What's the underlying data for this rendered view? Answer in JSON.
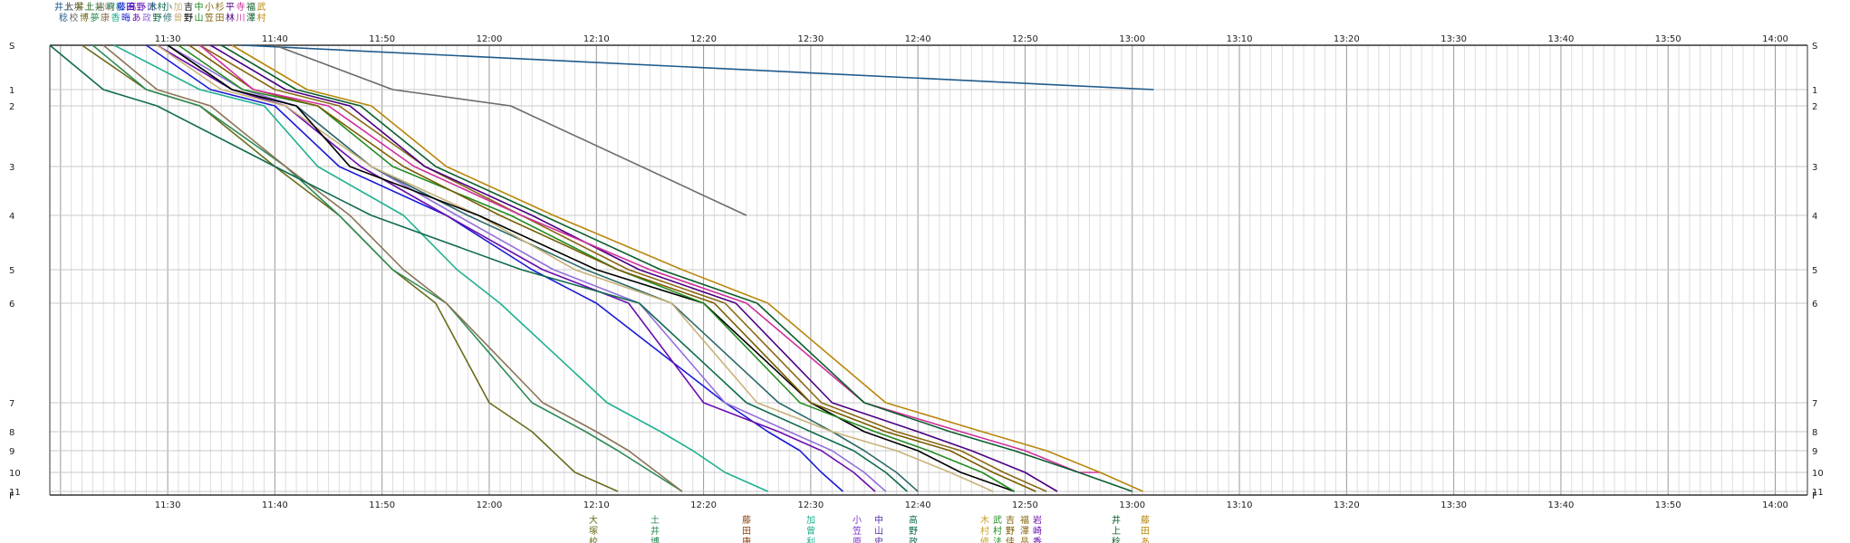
{
  "chart_data": {
    "type": "line",
    "title": "",
    "xlabel": "",
    "ylabel": "",
    "x_ticks": [
      "11:30",
      "11:40",
      "11:50",
      "12:00",
      "12:10",
      "12:20",
      "12:30",
      "12:40",
      "12:50",
      "13:00",
      "13:10",
      "13:20",
      "13:30",
      "13:40",
      "13:50",
      "14:00"
    ],
    "x_range": [
      "11:19",
      "14:03"
    ],
    "y_ticks": [
      "S",
      "1",
      "2",
      "3",
      "4",
      "5",
      "6",
      "7",
      "8",
      "9",
      "10",
      "11",
      "F"
    ],
    "grid": true,
    "legend": "top-left",
    "legend_names": [
      [
        "井上",
        "稔"
      ],
      [
        "大塚",
        "校"
      ],
      [
        "井上",
        "博"
      ],
      [
        "土井",
        "夢"
      ],
      [
        "岩崎",
        "康"
      ],
      [
        "村松",
        "香"
      ],
      [
        "藤田",
        "晦"
      ],
      [
        "高野",
        "あ"
      ],
      [
        "多田",
        "政"
      ],
      [
        "木村",
        "野"
      ],
      [
        "小",
        "修"
      ],
      [
        "加",
        "曾"
      ],
      [
        "吉",
        "野"
      ],
      [
        "中",
        "山"
      ],
      [
        "小",
        "笠"
      ],
      [
        "杉",
        "田"
      ],
      [
        "平",
        "林"
      ],
      [
        "寺",
        "川"
      ],
      [
        "福",
        "澤"
      ],
      [
        "武",
        "村"
      ]
    ],
    "finish_labels": [
      {
        "name": [
          "大",
          "塚",
          "校"
        ],
        "color": "#6b6b1c"
      },
      {
        "name": [
          "土",
          "井",
          "博"
        ],
        "color": "#2e8b57"
      },
      {
        "name": [
          "藤",
          "田",
          "康"
        ],
        "color": "#8b4513"
      },
      {
        "name": [
          "加",
          "曾",
          "利"
        ],
        "color": "#20b090"
      },
      {
        "name": [
          "小",
          "笠",
          "原"
        ],
        "color": "#7b2fc9"
      },
      {
        "name": [
          "中",
          "山",
          "史"
        ],
        "color": "#5a2ea6"
      },
      {
        "name": [
          "高",
          "野",
          "政"
        ],
        "color": "#0f6b4f"
      },
      {
        "name": [
          "木",
          "村",
          "修"
        ],
        "color": "#c9a227"
      },
      {
        "name": [
          "武",
          "村",
          "法"
        ],
        "color": "#228b22"
      },
      {
        "name": [
          "吉",
          "野",
          "佳"
        ],
        "color": "#7a5c00"
      },
      {
        "name": [
          "福",
          "澤",
          "晶"
        ],
        "color": "#8b6914"
      },
      {
        "name": [
          "岩",
          "崎",
          "香"
        ],
        "color": "#6a0dad"
      },
      {
        "name": [
          "井",
          "上",
          "稔"
        ],
        "color": "#0b5e2d"
      },
      {
        "name": [
          "藤",
          "田",
          "あ"
        ],
        "color": "#b8860b"
      }
    ],
    "series": [
      {
        "color": "#1e5a8c",
        "points": [
          [
            "11:37",
            0
          ],
          [
            "13:02",
            1
          ]
        ]
      },
      {
        "color": "#6b6b6b",
        "points": [
          [
            "11:40",
            0
          ],
          [
            "11:51",
            1
          ],
          [
            "12:02",
            2
          ],
          [
            "12:24",
            4
          ]
        ]
      },
      {
        "color": "#6b6b1c",
        "points": [
          [
            "11:22",
            0
          ],
          [
            "11:28",
            1
          ],
          [
            "11:33",
            2
          ],
          [
            "11:40",
            3
          ],
          [
            "11:46",
            4
          ],
          [
            "11:51",
            5
          ],
          [
            "11:55",
            6
          ],
          [
            "12:00",
            7
          ],
          [
            "12:04",
            8
          ],
          [
            "12:08",
            10
          ],
          [
            "12:12",
            11
          ]
        ]
      },
      {
        "color": "#2e8b57",
        "points": [
          [
            "11:23",
            0
          ],
          [
            "11:28",
            1
          ],
          [
            "11:33",
            2
          ],
          [
            "11:41",
            3
          ],
          [
            "11:46",
            4
          ],
          [
            "11:51",
            5
          ],
          [
            "11:56",
            6
          ],
          [
            "12:04",
            7
          ],
          [
            "12:09",
            8
          ],
          [
            "12:12",
            9
          ],
          [
            "12:18",
            11
          ]
        ]
      },
      {
        "color": "#8b7355",
        "points": [
          [
            "11:24",
            0
          ],
          [
            "11:29",
            1
          ],
          [
            "11:34",
            2
          ],
          [
            "11:41",
            3
          ],
          [
            "11:47",
            4
          ],
          [
            "11:52",
            5
          ],
          [
            "11:56",
            6
          ],
          [
            "12:05",
            7
          ],
          [
            "12:10",
            8
          ],
          [
            "12:13",
            9
          ],
          [
            "12:18",
            11
          ]
        ]
      },
      {
        "color": "#20b090",
        "points": [
          [
            "11:25",
            0
          ],
          [
            "11:33",
            1
          ],
          [
            "11:39",
            2
          ],
          [
            "11:44",
            3
          ],
          [
            "11:52",
            4
          ],
          [
            "11:57",
            5
          ],
          [
            "12:01",
            6
          ],
          [
            "12:11",
            7
          ],
          [
            "12:16",
            8
          ],
          [
            "12:19",
            9
          ],
          [
            "12:22",
            10
          ],
          [
            "12:26",
            11
          ]
        ]
      },
      {
        "color": "#1a1ad6",
        "points": [
          [
            "11:28",
            0
          ],
          [
            "11:34",
            1
          ],
          [
            "11:40",
            2
          ],
          [
            "11:46",
            3
          ],
          [
            "11:56",
            4
          ],
          [
            "12:04",
            5
          ],
          [
            "12:10",
            6
          ],
          [
            "12:22",
            7
          ],
          [
            "12:26",
            8
          ],
          [
            "12:29",
            9
          ],
          [
            "12:31",
            10
          ],
          [
            "12:33",
            11
          ]
        ]
      },
      {
        "color": "#6a0dad",
        "points": [
          [
            "11:29",
            0
          ],
          [
            "11:36",
            1
          ],
          [
            "11:41",
            2
          ],
          [
            "11:48",
            3
          ],
          [
            "11:56",
            4
          ],
          [
            "12:05",
            5
          ],
          [
            "12:13",
            6
          ],
          [
            "12:20",
            7
          ],
          [
            "12:27",
            8
          ],
          [
            "12:31",
            9
          ],
          [
            "12:34",
            10
          ],
          [
            "12:36",
            11
          ]
        ]
      },
      {
        "color": "#9370db",
        "points": [
          [
            "11:30",
            0
          ],
          [
            "11:37",
            1
          ],
          [
            "11:42",
            2
          ],
          [
            "11:49",
            3
          ],
          [
            "11:57",
            4
          ],
          [
            "12:06",
            5
          ],
          [
            "12:14",
            6
          ],
          [
            "12:22",
            7
          ],
          [
            "12:28",
            8
          ],
          [
            "12:32",
            9
          ],
          [
            "12:35",
            10
          ],
          [
            "12:37",
            11
          ]
        ]
      },
      {
        "color": "#0f6b4f",
        "points": [
          [
            "11:19",
            0
          ],
          [
            "11:24",
            1
          ],
          [
            "11:29",
            2
          ],
          [
            "11:40",
            3
          ],
          [
            "11:49",
            4
          ],
          [
            "12:03",
            5
          ],
          [
            "12:14",
            6
          ],
          [
            "12:24",
            7
          ],
          [
            "12:30",
            8
          ],
          [
            "12:34",
            9
          ],
          [
            "12:37",
            10
          ],
          [
            "12:39",
            11
          ]
        ]
      },
      {
        "color": "#2e6b6b",
        "points": [
          [
            "11:30",
            0
          ],
          [
            "11:36",
            1
          ],
          [
            "11:42",
            2
          ],
          [
            "11:49",
            3
          ],
          [
            "11:58",
            4
          ],
          [
            "12:09",
            5
          ],
          [
            "12:17",
            6
          ],
          [
            "12:27",
            7
          ],
          [
            "12:32",
            8
          ],
          [
            "12:35",
            9
          ],
          [
            "12:38",
            10
          ],
          [
            "12:40",
            11
          ]
        ]
      },
      {
        "color": "#c9b27a",
        "points": [
          [
            "11:29",
            0
          ],
          [
            "11:35",
            1
          ],
          [
            "11:41",
            2
          ],
          [
            "11:49",
            3
          ],
          [
            "11:59",
            4
          ],
          [
            "12:08",
            5
          ],
          [
            "12:17",
            6
          ],
          [
            "12:25",
            7
          ],
          [
            "12:32",
            8
          ],
          [
            "12:38",
            9
          ],
          [
            "12:43",
            10
          ],
          [
            "12:47",
            11
          ]
        ]
      },
      {
        "color": "#000000",
        "points": [
          [
            "11:30",
            0
          ],
          [
            "11:36",
            1
          ],
          [
            "11:42",
            2
          ],
          [
            "11:47",
            3
          ],
          [
            "11:59",
            4
          ],
          [
            "12:10",
            5
          ],
          [
            "12:20",
            6
          ],
          [
            "12:30",
            7
          ],
          [
            "12:35",
            8
          ],
          [
            "12:40",
            9
          ],
          [
            "12:44",
            10
          ],
          [
            "12:49",
            11
          ]
        ]
      },
      {
        "color": "#228b22",
        "points": [
          [
            "11:31",
            0
          ],
          [
            "11:37",
            1
          ],
          [
            "11:44",
            2
          ],
          [
            "11:51",
            3
          ],
          [
            "12:02",
            4
          ],
          [
            "12:12",
            5
          ],
          [
            "12:20",
            6
          ],
          [
            "12:29",
            7
          ],
          [
            "12:36",
            8
          ],
          [
            "12:41",
            9
          ],
          [
            "12:46",
            10
          ],
          [
            "12:49",
            11
          ]
        ]
      },
      {
        "color": "#7a5c00",
        "points": [
          [
            "11:32",
            0
          ],
          [
            "11:38",
            1
          ],
          [
            "11:44",
            2
          ],
          [
            "11:52",
            3
          ],
          [
            "12:01",
            4
          ],
          [
            "12:12",
            5
          ],
          [
            "12:21",
            6
          ],
          [
            "12:30",
            7
          ],
          [
            "12:37",
            8
          ],
          [
            "12:43",
            9
          ],
          [
            "12:47",
            10
          ],
          [
            "12:51",
            11
          ]
        ]
      },
      {
        "color": "#8b6914",
        "points": [
          [
            "11:33",
            0
          ],
          [
            "11:40",
            1
          ],
          [
            "11:46",
            2
          ],
          [
            "11:54",
            3
          ],
          [
            "12:03",
            4
          ],
          [
            "12:13",
            5
          ],
          [
            "12:22",
            6
          ],
          [
            "12:31",
            7
          ],
          [
            "12:38",
            8
          ],
          [
            "12:44",
            9
          ],
          [
            "12:48",
            10
          ],
          [
            "12:52",
            11
          ]
        ]
      },
      {
        "color": "#4b0082",
        "points": [
          [
            "11:34",
            0
          ],
          [
            "11:41",
            1
          ],
          [
            "11:47",
            2
          ],
          [
            "11:54",
            3
          ],
          [
            "12:04",
            4
          ],
          [
            "12:14",
            5
          ],
          [
            "12:23",
            6
          ],
          [
            "12:32",
            7
          ],
          [
            "12:40",
            8
          ],
          [
            "12:45",
            9
          ],
          [
            "12:50",
            10
          ],
          [
            "12:53",
            11
          ]
        ]
      },
      {
        "color": "#d0309c",
        "points": [
          [
            "11:33",
            0
          ],
          [
            "11:38",
            1
          ],
          [
            "11:45",
            2
          ],
          [
            "11:53",
            3
          ],
          [
            "12:03",
            4
          ],
          [
            "12:15",
            5
          ],
          [
            "12:24",
            6
          ],
          [
            "12:35",
            7
          ],
          [
            "12:44",
            8
          ],
          [
            "12:50",
            9
          ],
          [
            "12:55",
            10
          ],
          [
            "12:57",
            10
          ]
        ]
      },
      {
        "color": "#0b5e2d",
        "points": [
          [
            "11:35",
            0
          ],
          [
            "11:42",
            1
          ],
          [
            "11:48",
            2
          ],
          [
            "11:55",
            3
          ],
          [
            "12:05",
            4
          ],
          [
            "12:16",
            5
          ],
          [
            "12:25",
            6
          ],
          [
            "12:35",
            7
          ],
          [
            "12:43",
            8
          ],
          [
            "12:49",
            9
          ],
          [
            "12:55",
            10
          ],
          [
            "13:00",
            11
          ]
        ]
      },
      {
        "color": "#b8860b",
        "points": [
          [
            "11:36",
            0
          ],
          [
            "11:43",
            1
          ],
          [
            "11:49",
            2
          ],
          [
            "11:56",
            3
          ],
          [
            "12:06",
            4
          ],
          [
            "12:18",
            5
          ],
          [
            "12:26",
            6
          ],
          [
            "12:37",
            7
          ],
          [
            "12:46",
            8
          ],
          [
            "12:52",
            9
          ],
          [
            "12:57",
            10
          ],
          [
            "13:01",
            11
          ]
        ]
      }
    ]
  }
}
